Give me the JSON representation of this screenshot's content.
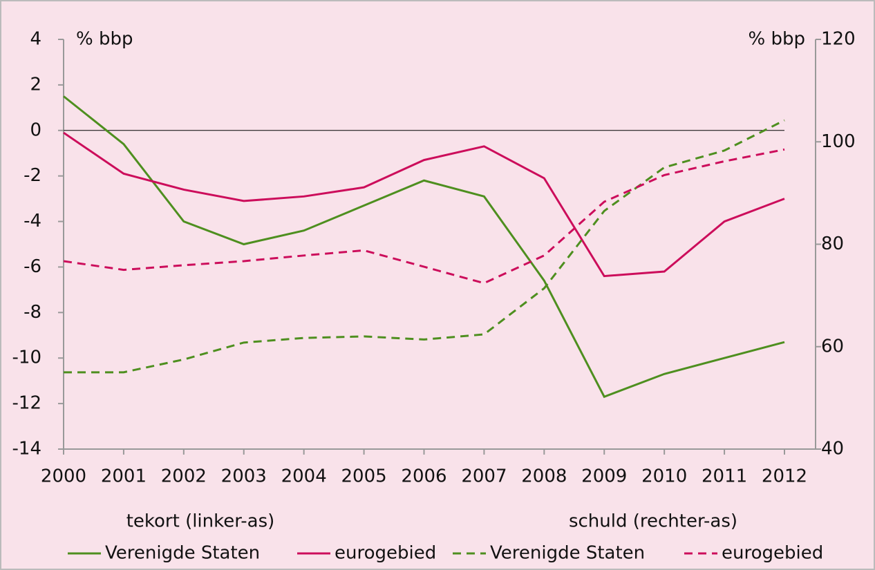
{
  "chart_data": {
    "type": "line",
    "ylabel": "% bbp",
    "y2label": "% bbp",
    "annotations": [
      "tekort (linker-as)",
      "schuld (rechter-as)"
    ],
    "categories": [
      "2000",
      "2001",
      "2002",
      "2003",
      "2004",
      "2005",
      "2006",
      "2007",
      "2008",
      "2009",
      "2010",
      "2011",
      "2012"
    ],
    "series": [
      {
        "name": "Verenigde Staten",
        "color": "#4e8f1f",
        "dash": "solid",
        "axis": "y",
        "values": [
          1.5,
          -0.6,
          -4.0,
          -5.0,
          -4.4,
          -3.3,
          -2.2,
          -2.9,
          -6.6,
          -11.7,
          -10.7,
          -10.0,
          -9.3
        ]
      },
      {
        "name": "eurogebied",
        "color": "#cc0d5b",
        "dash": "solid",
        "axis": "y",
        "values": [
          -0.1,
          -1.9,
          -2.6,
          -3.1,
          -2.9,
          -2.5,
          -1.3,
          -0.7,
          -2.1,
          -6.4,
          -6.2,
          -4.0,
          -3.0
        ]
      },
      {
        "name": "Verenigde Staten",
        "color": "#4e8f1f",
        "dash": "dashed",
        "axis": "y2",
        "values": [
          55,
          55,
          57.5,
          60.8,
          61.7,
          62,
          61.4,
          62.4,
          71.4,
          86.5,
          95,
          98.3,
          104.2
        ]
      },
      {
        "name": "eurogebied",
        "color": "#cc0d5b",
        "dash": "dashed",
        "axis": "y2",
        "values": [
          76.7,
          75,
          75.9,
          76.7,
          77.8,
          78.8,
          75.6,
          72.4,
          77.8,
          88.3,
          93.5,
          96.2,
          98.5
        ]
      }
    ],
    "ylim": [
      -14,
      4
    ],
    "yticks": [
      -14,
      -12,
      -10,
      -8,
      -6,
      -4,
      -2,
      0,
      2,
      4
    ],
    "y2lim": [
      40,
      120
    ],
    "y2ticks": [
      40,
      60,
      80,
      100,
      120
    ],
    "zero_line": true,
    "background": "#f9e2ea"
  }
}
